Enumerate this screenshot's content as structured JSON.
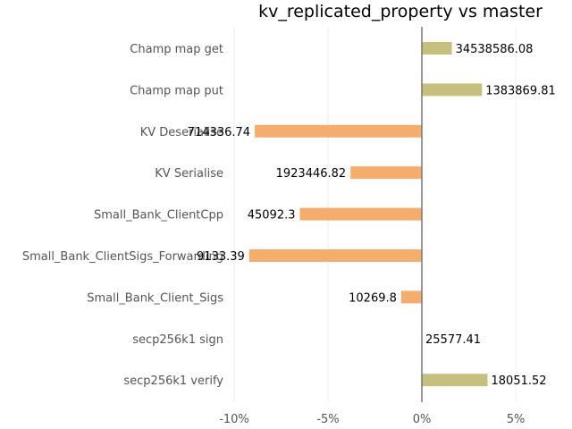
{
  "chart_data": {
    "type": "bar",
    "orientation": "horizontal",
    "title": "kv_replicated_property vs master",
    "xlabel": "",
    "ylabel": "",
    "xlim": [
      -0.1,
      0.08
    ],
    "x_ticks": [
      {
        "value": -0.1,
        "label": "-10%"
      },
      {
        "value": -0.05,
        "label": "-5%"
      },
      {
        "value": 0.0,
        "label": "0%"
      },
      {
        "value": 0.05,
        "label": "5%"
      }
    ],
    "grid": true,
    "legend": "none",
    "colors": {
      "positive": "#c5c07e",
      "negative": "#f5ad6e"
    },
    "categories": [
      "Champ map get",
      "Champ map put",
      "KV Deserialise",
      "KV Serialise",
      "Small_Bank_ClientCpp",
      "Small_Bank_ClientSigs_Forwarding",
      "Small_Bank_Client_Sigs",
      "secp256k1 sign",
      "secp256k1 verify"
    ],
    "values": [
      0.016,
      0.032,
      -0.089,
      -0.038,
      -0.065,
      -0.092,
      -0.011,
      0.0,
      0.035
    ],
    "data_labels": [
      "34538586.08",
      "1383869.81",
      "714336.74",
      "1923446.82",
      "45092.3",
      "9133.39",
      "10269.8",
      "25577.41",
      "18051.52"
    ]
  }
}
